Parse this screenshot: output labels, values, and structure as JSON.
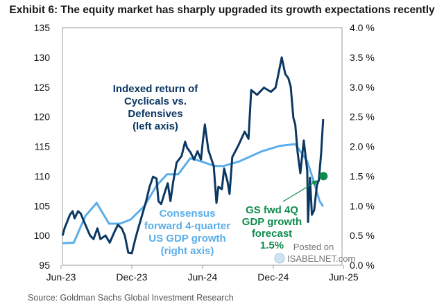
{
  "chart_data": {
    "type": "line",
    "title": "Exhibit 6: The equity market has sharply upgraded its growth expectations recently",
    "source": "Source: Goldman Sachs Global Investment Research",
    "x_tick_labels": [
      "Jun-23",
      "Dec-23",
      "Jun-24",
      "Dec-24",
      "Jun-25"
    ],
    "x_ticks": [
      "2023-06-01",
      "2023-12-01",
      "2024-06-01",
      "2024-12-01",
      "2025-06-01"
    ],
    "left_axis": {
      "range": [
        95,
        135
      ],
      "tick_labels": [
        "95",
        "100",
        "105",
        "110",
        "115",
        "120",
        "125",
        "130",
        "135"
      ]
    },
    "right_axis": {
      "range": [
        0,
        4
      ],
      "tick_labels": [
        "0.0 %",
        "0.5 %",
        "1.0 %",
        "1.5 %",
        "2.0 %",
        "2.5 %",
        "3.0 %",
        "3.5 %",
        "4.0 %"
      ]
    },
    "grid": false,
    "colors": {
      "cyclicals": "#0b3763",
      "consensus": "#5aaeea",
      "gs": "#0e8b4c"
    },
    "series": [
      {
        "axis": "left",
        "label_lines": [
          "Indexed return of",
          "Cyclicals vs.",
          "Defensives",
          "(left axis)"
        ],
        "points": [
          [
            "2023-06-05",
            100.0
          ],
          [
            "2023-06-10",
            101.2
          ],
          [
            "2023-06-24",
            103.5
          ],
          [
            "2023-07-01",
            104.1
          ],
          [
            "2023-07-06",
            102.9
          ],
          [
            "2023-07-15",
            104.1
          ],
          [
            "2023-07-22",
            103.7
          ],
          [
            "2023-08-01",
            102.1
          ],
          [
            "2023-08-15",
            100.0
          ],
          [
            "2023-08-24",
            99.4
          ],
          [
            "2023-09-03",
            101.2
          ],
          [
            "2023-09-11",
            99.4
          ],
          [
            "2023-09-24",
            100.0
          ],
          [
            "2023-10-05",
            98.8
          ],
          [
            "2023-10-17",
            100.6
          ],
          [
            "2023-10-26",
            101.8
          ],
          [
            "2023-11-05",
            101.2
          ],
          [
            "2023-11-13",
            100.0
          ],
          [
            "2023-11-22",
            97.1
          ],
          [
            "2023-12-01",
            97.0
          ],
          [
            "2023-12-10",
            99.4
          ],
          [
            "2023-12-15",
            100.6
          ],
          [
            "2023-12-28",
            103.5
          ],
          [
            "2024-01-07",
            105.8
          ],
          [
            "2024-01-16",
            108.2
          ],
          [
            "2024-01-25",
            109.9
          ],
          [
            "2024-02-03",
            109.6
          ],
          [
            "2024-02-08",
            105.8
          ],
          [
            "2024-02-15",
            105.3
          ],
          [
            "2024-02-26",
            107.6
          ],
          [
            "2024-03-03",
            108.8
          ],
          [
            "2024-03-10",
            105.8
          ],
          [
            "2024-03-17",
            109.0
          ],
          [
            "2024-03-26",
            112.3
          ],
          [
            "2024-04-08",
            113.4
          ],
          [
            "2024-04-17",
            115.8
          ],
          [
            "2024-04-22",
            114.8
          ],
          [
            "2024-05-01",
            114.0
          ],
          [
            "2024-05-10",
            112.8
          ],
          [
            "2024-05-19",
            114.2
          ],
          [
            "2024-05-28",
            112.8
          ],
          [
            "2024-06-02",
            116.0
          ],
          [
            "2024-06-07",
            118.7
          ],
          [
            "2024-06-16",
            114.4
          ],
          [
            "2024-06-30",
            111.7
          ],
          [
            "2024-07-07",
            105.5
          ],
          [
            "2024-07-12",
            108.2
          ],
          [
            "2024-07-21",
            107.8
          ],
          [
            "2024-07-27",
            111.3
          ],
          [
            "2024-08-05",
            109.0
          ],
          [
            "2024-08-10",
            107.0
          ],
          [
            "2024-08-17",
            113.2
          ],
          [
            "2024-09-02",
            115.2
          ],
          [
            "2024-09-18",
            117.5
          ],
          [
            "2024-09-28",
            116.3
          ],
          [
            "2024-10-05",
            124.5
          ],
          [
            "2024-10-20",
            123.7
          ],
          [
            "2024-11-07",
            124.9
          ],
          [
            "2024-11-25",
            124.2
          ],
          [
            "2024-12-07",
            124.9
          ],
          [
            "2024-12-16",
            127.7
          ],
          [
            "2024-12-23",
            130.0
          ],
          [
            "2025-01-01",
            127.2
          ],
          [
            "2025-01-09",
            126.5
          ],
          [
            "2025-01-15",
            125.1
          ],
          [
            "2025-01-22",
            119.8
          ],
          [
            "2025-01-27",
            118.7
          ],
          [
            "2025-02-02",
            114.0
          ],
          [
            "2025-02-09",
            110.5
          ],
          [
            "2025-02-18",
            116.0
          ],
          [
            "2025-02-27",
            110.9
          ],
          [
            "2025-03-01",
            102.3
          ],
          [
            "2025-03-06",
            109.7
          ],
          [
            "2025-03-11",
            103.5
          ],
          [
            "2025-03-17",
            104.3
          ],
          [
            "2025-03-24",
            108.5
          ],
          [
            "2025-03-29",
            109.3
          ],
          [
            "2025-04-04",
            114.0
          ],
          [
            "2025-04-09",
            119.6
          ]
        ]
      },
      {
        "axis": "right",
        "label_lines": [
          "Consensus",
          "forward 4-quarter",
          "US GDP growth",
          "(right axis)"
        ],
        "points": [
          [
            "2023-06-05",
            0.37
          ],
          [
            "2023-07-04",
            0.38
          ],
          [
            "2023-08-03",
            0.83
          ],
          [
            "2023-09-01",
            1.05
          ],
          [
            "2023-10-03",
            0.7
          ],
          [
            "2023-11-01",
            0.7
          ],
          [
            "2023-11-28",
            0.77
          ],
          [
            "2024-01-03",
            1.0
          ],
          [
            "2024-02-03",
            1.34
          ],
          [
            "2024-03-01",
            1.53
          ],
          [
            "2024-03-30",
            1.53
          ],
          [
            "2024-04-30",
            1.8
          ],
          [
            "2024-05-23",
            1.76
          ],
          [
            "2024-07-03",
            1.67
          ],
          [
            "2024-07-25",
            1.67
          ],
          [
            "2024-09-05",
            1.75
          ],
          [
            "2024-11-02",
            1.92
          ],
          [
            "2024-12-18",
            2.01
          ],
          [
            "2025-01-27",
            2.04
          ],
          [
            "2025-02-27",
            1.75
          ],
          [
            "2025-03-15",
            1.43
          ],
          [
            "2025-03-31",
            1.08
          ],
          [
            "2025-04-09",
            0.99
          ]
        ]
      }
    ],
    "gs_forecast": {
      "axis": "right",
      "date": "2025-04-10",
      "value": 1.5,
      "label_lines": [
        "GS fwd 4Q",
        "GDP growth",
        "forecast",
        "1.5%"
      ]
    },
    "watermark": {
      "line1": "Posted on",
      "line2": "ISABELNET.com"
    }
  }
}
